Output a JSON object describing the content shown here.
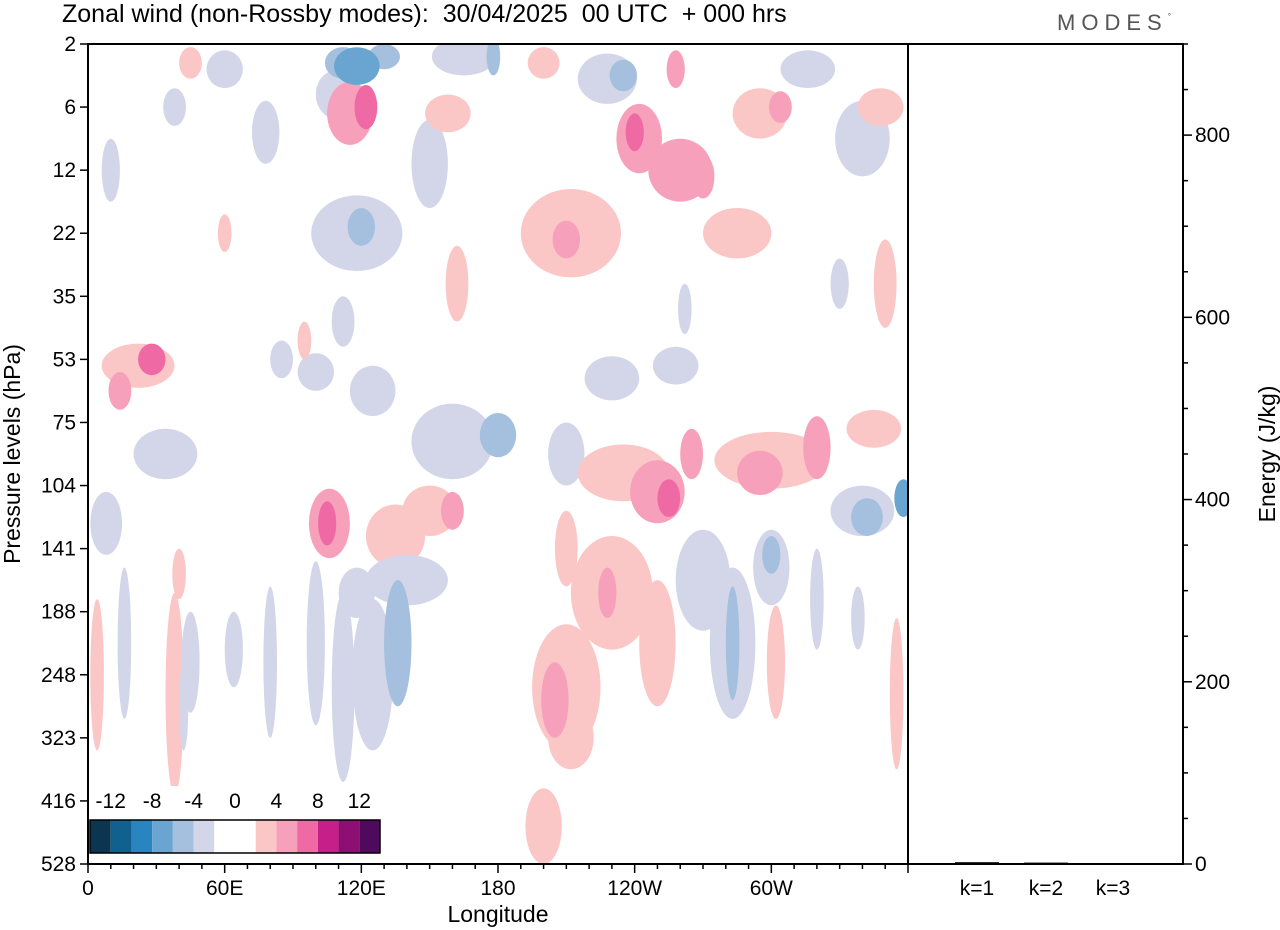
{
  "title": "Zonal wind (non-Rossby modes):  30/04/2025  00 UTC  + 000 hrs",
  "logo": "MODES",
  "logo_mark": "°",
  "chart_data": [
    {
      "type": "heatmap",
      "title": "Zonal wind (non-Rossby modes):  30/04/2025  00 UTC  + 000 hrs",
      "xlabel": "Longitude",
      "ylabel": "Pressure levels (hPa)",
      "x_ticks": [
        "0",
        "60E",
        "120E",
        "180",
        "120W",
        "60W"
      ],
      "x_tick_values": [
        0,
        60,
        120,
        180,
        240,
        300
      ],
      "xlim": [
        0,
        360
      ],
      "y_ticks": [
        "2",
        "6",
        "12",
        "22",
        "35",
        "53",
        "75",
        "104",
        "141",
        "188",
        "248",
        "323",
        "416",
        "528"
      ],
      "y_scale": "pressure levels, top to bottom",
      "colorbar": {
        "labels": [
          "-12",
          "-8",
          "-4",
          "0",
          "4",
          "8",
          "12"
        ],
        "colors": [
          "#0b3550",
          "#11618f",
          "#2a84bf",
          "#6aa5d1",
          "#a4c0de",
          "#d3d6e9",
          "#ffffff",
          "#ffffff",
          "#fbc6c6",
          "#f7a0bb",
          "#ef6aa4",
          "#c61f8a",
          "#8e0f73",
          "#4f0a5e"
        ]
      },
      "blobs": [
        {
          "x": 8,
          "lev": 7.6,
          "rx": 7,
          "rl": 0.5,
          "v": -3
        },
        {
          "x": 22,
          "lev": 5.1,
          "rx": 16,
          "rl": 0.35,
          "v": 3
        },
        {
          "x": 28,
          "lev": 5.0,
          "rx": 6,
          "rl": 0.25,
          "v": 6
        },
        {
          "x": 14,
          "lev": 5.5,
          "rx": 5,
          "rl": 0.3,
          "v": 5
        },
        {
          "x": 34,
          "lev": 6.5,
          "rx": 14,
          "rl": 0.4,
          "v": -3
        },
        {
          "x": 38,
          "lev": 1.0,
          "rx": 5,
          "rl": 0.3,
          "v": -3
        },
        {
          "x": 45,
          "lev": 0.3,
          "rx": 5,
          "rl": 0.25,
          "v": 3
        },
        {
          "x": 60,
          "lev": 0.4,
          "rx": 8,
          "rl": 0.3,
          "v": -3
        },
        {
          "x": 10,
          "lev": 2.0,
          "rx": 4,
          "rl": 0.5,
          "v": -3
        },
        {
          "x": 4,
          "lev": 10.0,
          "rx": 3,
          "rl": 1.2,
          "v": 3
        },
        {
          "x": 16,
          "lev": 9.5,
          "rx": 3,
          "rl": 1.2,
          "v": -3
        },
        {
          "x": 38,
          "lev": 10.3,
          "rx": 4,
          "rl": 1.6,
          "v": 3
        },
        {
          "x": 42,
          "lev": 10.5,
          "rx": 2,
          "rl": 0.7,
          "v": -3
        },
        {
          "x": 78,
          "lev": 1.4,
          "rx": 6,
          "rl": 0.5,
          "v": -3
        },
        {
          "x": 110,
          "lev": 0.8,
          "rx": 10,
          "rl": 0.4,
          "v": -3
        },
        {
          "x": 112,
          "lev": 0.3,
          "rx": 8,
          "rl": 0.25,
          "v": -5
        },
        {
          "x": 118,
          "lev": 0.35,
          "rx": 10,
          "rl": 0.3,
          "v": -6
        },
        {
          "x": 130,
          "lev": 0.2,
          "rx": 7,
          "rl": 0.2,
          "v": -4
        },
        {
          "x": 115,
          "lev": 1.1,
          "rx": 10,
          "rl": 0.5,
          "v": 4
        },
        {
          "x": 122,
          "lev": 1.0,
          "rx": 5,
          "rl": 0.35,
          "v": 6
        },
        {
          "x": 118,
          "lev": 3.0,
          "rx": 20,
          "rl": 0.6,
          "v": -3
        },
        {
          "x": 120,
          "lev": 2.9,
          "rx": 6,
          "rl": 0.3,
          "v": -4
        },
        {
          "x": 150,
          "lev": 1.9,
          "rx": 8,
          "rl": 0.7,
          "v": -3
        },
        {
          "x": 158,
          "lev": 1.1,
          "rx": 10,
          "rl": 0.3,
          "v": 3
        },
        {
          "x": 165,
          "lev": 0.2,
          "rx": 14,
          "rl": 0.3,
          "v": -3
        },
        {
          "x": 178,
          "lev": 0.2,
          "rx": 3,
          "rl": 0.3,
          "v": -4
        },
        {
          "x": 200,
          "lev": 0.3,
          "rx": 7,
          "rl": 0.25,
          "v": 3
        },
        {
          "x": 228,
          "lev": 0.55,
          "rx": 13,
          "rl": 0.4,
          "v": -3
        },
        {
          "x": 235,
          "lev": 0.5,
          "rx": 6,
          "rl": 0.25,
          "v": -4
        },
        {
          "x": 258,
          "lev": 0.4,
          "rx": 4,
          "rl": 0.3,
          "v": 5
        },
        {
          "x": 242,
          "lev": 1.5,
          "rx": 10,
          "rl": 0.55,
          "v": 4
        },
        {
          "x": 240,
          "lev": 1.4,
          "rx": 4,
          "rl": 0.3,
          "v": 6
        },
        {
          "x": 260,
          "lev": 2.0,
          "rx": 14,
          "rl": 0.5,
          "v": 4
        },
        {
          "x": 270,
          "lev": 2.1,
          "rx": 5,
          "rl": 0.35,
          "v": 5
        },
        {
          "x": 295,
          "lev": 1.1,
          "rx": 12,
          "rl": 0.4,
          "v": 3
        },
        {
          "x": 304,
          "lev": 1.0,
          "rx": 5,
          "rl": 0.25,
          "v": 5
        },
        {
          "x": 316,
          "lev": 0.4,
          "rx": 12,
          "rl": 0.3,
          "v": -3
        },
        {
          "x": 340,
          "lev": 1.5,
          "rx": 12,
          "rl": 0.6,
          "v": -3
        },
        {
          "x": 212,
          "lev": 3.0,
          "rx": 22,
          "rl": 0.7,
          "v": 3
        },
        {
          "x": 210,
          "lev": 3.1,
          "rx": 6,
          "rl": 0.3,
          "v": 4
        },
        {
          "x": 285,
          "lev": 3.0,
          "rx": 15,
          "rl": 0.4,
          "v": 3
        },
        {
          "x": 348,
          "lev": 1.0,
          "rx": 10,
          "rl": 0.3,
          "v": 3
        },
        {
          "x": 125,
          "lev": 5.5,
          "rx": 10,
          "rl": 0.4,
          "v": -3
        },
        {
          "x": 100,
          "lev": 5.2,
          "rx": 8,
          "rl": 0.3,
          "v": -3
        },
        {
          "x": 160,
          "lev": 6.3,
          "rx": 18,
          "rl": 0.6,
          "v": -3
        },
        {
          "x": 180,
          "lev": 6.2,
          "rx": 8,
          "rl": 0.35,
          "v": -4
        },
        {
          "x": 210,
          "lev": 6.5,
          "rx": 8,
          "rl": 0.5,
          "v": -3
        },
        {
          "x": 230,
          "lev": 5.3,
          "rx": 12,
          "rl": 0.35,
          "v": -3
        },
        {
          "x": 258,
          "lev": 5.1,
          "rx": 10,
          "rl": 0.3,
          "v": -3
        },
        {
          "x": 235,
          "lev": 6.8,
          "rx": 20,
          "rl": 0.45,
          "v": 3
        },
        {
          "x": 250,
          "lev": 7.1,
          "rx": 12,
          "rl": 0.5,
          "v": 5
        },
        {
          "x": 255,
          "lev": 7.2,
          "rx": 5,
          "rl": 0.3,
          "v": 7
        },
        {
          "x": 265,
          "lev": 6.5,
          "rx": 5,
          "rl": 0.4,
          "v": 4
        },
        {
          "x": 300,
          "lev": 6.6,
          "rx": 25,
          "rl": 0.45,
          "v": 3
        },
        {
          "x": 295,
          "lev": 6.8,
          "rx": 10,
          "rl": 0.35,
          "v": 5
        },
        {
          "x": 320,
          "lev": 6.4,
          "rx": 6,
          "rl": 0.5,
          "v": 4
        },
        {
          "x": 345,
          "lev": 6.1,
          "rx": 12,
          "rl": 0.3,
          "v": 3
        },
        {
          "x": 340,
          "lev": 7.4,
          "rx": 14,
          "rl": 0.4,
          "v": -3
        },
        {
          "x": 342,
          "lev": 7.5,
          "rx": 7,
          "rl": 0.3,
          "v": -4
        },
        {
          "x": 358,
          "lev": 7.2,
          "rx": 4,
          "rl": 0.3,
          "v": -6
        },
        {
          "x": 106,
          "lev": 7.6,
          "rx": 9,
          "rl": 0.55,
          "v": 4
        },
        {
          "x": 105,
          "lev": 7.6,
          "rx": 4,
          "rl": 0.35,
          "v": 6
        },
        {
          "x": 135,
          "lev": 7.8,
          "rx": 13,
          "rl": 0.5,
          "v": 3
        },
        {
          "x": 150,
          "lev": 7.4,
          "rx": 12,
          "rl": 0.4,
          "v": 3
        },
        {
          "x": 160,
          "lev": 7.4,
          "rx": 5,
          "rl": 0.3,
          "v": 4
        },
        {
          "x": 118,
          "lev": 8.7,
          "rx": 8,
          "rl": 0.4,
          "v": -3
        },
        {
          "x": 140,
          "lev": 8.5,
          "rx": 18,
          "rl": 0.4,
          "v": -3
        },
        {
          "x": 125,
          "lev": 10.0,
          "rx": 9,
          "rl": 1.2,
          "v": -3
        },
        {
          "x": 136,
          "lev": 9.5,
          "rx": 6,
          "rl": 1.0,
          "v": -4
        },
        {
          "x": 138,
          "lev": 9.3,
          "rx": 3,
          "rl": 0.5,
          "v": -5
        },
        {
          "x": 112,
          "lev": 10.2,
          "rx": 5,
          "rl": 1.5,
          "v": -3
        },
        {
          "x": 100,
          "lev": 9.5,
          "rx": 4,
          "rl": 1.3,
          "v": -3
        },
        {
          "x": 230,
          "lev": 8.7,
          "rx": 18,
          "rl": 0.9,
          "v": 3
        },
        {
          "x": 228,
          "lev": 8.7,
          "rx": 4,
          "rl": 0.4,
          "v": 4
        },
        {
          "x": 210,
          "lev": 10.2,
          "rx": 15,
          "rl": 1.0,
          "v": 3
        },
        {
          "x": 205,
          "lev": 10.4,
          "rx": 6,
          "rl": 0.6,
          "v": 5
        },
        {
          "x": 250,
          "lev": 9.5,
          "rx": 8,
          "rl": 1.0,
          "v": 3
        },
        {
          "x": 212,
          "lev": 11.0,
          "rx": 10,
          "rl": 0.5,
          "v": 3
        },
        {
          "x": 200,
          "lev": 12.4,
          "rx": 8,
          "rl": 0.6,
          "v": 3
        },
        {
          "x": 270,
          "lev": 8.5,
          "rx": 12,
          "rl": 0.8,
          "v": -3
        },
        {
          "x": 283,
          "lev": 9.5,
          "rx": 10,
          "rl": 1.2,
          "v": -3
        },
        {
          "x": 283,
          "lev": 9.5,
          "rx": 3,
          "rl": 0.9,
          "v": -4
        },
        {
          "x": 300,
          "lev": 8.3,
          "rx": 8,
          "rl": 0.6,
          "v": -3
        },
        {
          "x": 300,
          "lev": 8.1,
          "rx": 4,
          "rl": 0.3,
          "v": -4
        },
        {
          "x": 302,
          "lev": 9.8,
          "rx": 4,
          "rl": 0.9,
          "v": 3
        },
        {
          "x": 320,
          "lev": 8.8,
          "rx": 3,
          "rl": 0.8,
          "v": -3
        },
        {
          "x": 338,
          "lev": 9.1,
          "rx": 3,
          "rl": 0.5,
          "v": -3
        },
        {
          "x": 355,
          "lev": 10.3,
          "rx": 3,
          "rl": 1.2,
          "v": 3
        },
        {
          "x": 45,
          "lev": 9.8,
          "rx": 4,
          "rl": 0.8,
          "v": -3
        },
        {
          "x": 64,
          "lev": 9.6,
          "rx": 4,
          "rl": 0.6,
          "v": -3
        },
        {
          "x": 80,
          "lev": 9.8,
          "rx": 3,
          "rl": 1.2,
          "v": -3
        },
        {
          "x": 40,
          "lev": 8.4,
          "rx": 3,
          "rl": 0.4,
          "v": 3
        },
        {
          "x": 85,
          "lev": 5.0,
          "rx": 5,
          "rl": 0.3,
          "v": -3
        },
        {
          "x": 112,
          "lev": 4.4,
          "rx": 5,
          "rl": 0.4,
          "v": -3
        },
        {
          "x": 210,
          "lev": 8.0,
          "rx": 5,
          "rl": 0.6,
          "v": 3
        },
        {
          "x": 60,
          "lev": 3.0,
          "rx": 3,
          "rl": 0.3,
          "v": 3
        },
        {
          "x": 162,
          "lev": 3.8,
          "rx": 5,
          "rl": 0.6,
          "v": 3
        },
        {
          "x": 95,
          "lev": 4.7,
          "rx": 3,
          "rl": 0.3,
          "v": 3
        },
        {
          "x": 350,
          "lev": 3.8,
          "rx": 5,
          "rl": 0.7,
          "v": 3
        },
        {
          "x": 330,
          "lev": 3.8,
          "rx": 4,
          "rl": 0.4,
          "v": -3
        },
        {
          "x": 262,
          "lev": 4.2,
          "rx": 3,
          "rl": 0.4,
          "v": -3
        }
      ]
    },
    {
      "type": "bar",
      "categories": [
        "k=1",
        "k=2",
        "k=3"
      ],
      "values": [
        2,
        1.5,
        1
      ],
      "ylabel": "Energy (J/kg)",
      "y_ticks": [
        "0",
        "200",
        "400",
        "600",
        "800"
      ],
      "ylim": [
        0,
        900
      ]
    }
  ]
}
